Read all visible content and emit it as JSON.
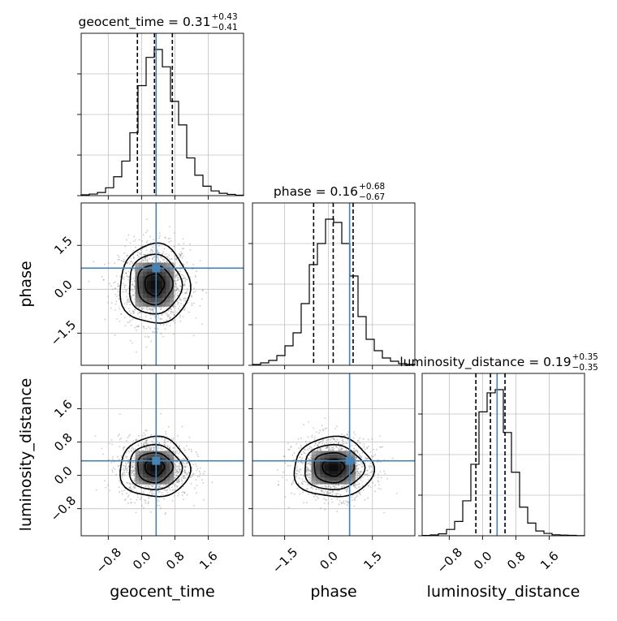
{
  "colors": {
    "truth": "#4682b4",
    "hist": "#000000",
    "grid": "#c0c0c0",
    "scatter": "#8a8a8a"
  },
  "chart_data": {
    "type": "corner",
    "parameters": [
      {
        "name": "geocent_time",
        "label": "geocent_time",
        "truth": 0.35,
        "median": 0.31,
        "plus": 0.43,
        "minus": 0.41,
        "title_main": "geocent_time = 0.31",
        "title_plus": "+0.43",
        "title_minus": "−0.41",
        "range": [
          -1.45,
          2.45
        ],
        "ticks": [
          -0.8,
          0.0,
          0.8,
          1.6
        ],
        "tick_labels": [
          "−0.8",
          "0.0",
          "0.8",
          "1.6"
        ],
        "quantiles": [
          -0.1,
          0.31,
          0.74
        ]
      },
      {
        "name": "phase",
        "label": "phase",
        "truth": 0.72,
        "median": 0.16,
        "plus": 0.68,
        "minus": 0.67,
        "title_main": "phase = 0.16",
        "title_plus": "+0.68",
        "title_minus": "−0.67",
        "range": [
          -2.6,
          2.95
        ],
        "ticks": [
          -1.5,
          0.0,
          1.5
        ],
        "tick_labels": [
          "−1.5",
          "0.0",
          "1.5"
        ],
        "quantiles": [
          -0.51,
          0.16,
          0.84
        ]
      },
      {
        "name": "luminosity_distance",
        "label": "luminosity_distance",
        "truth": 0.35,
        "median": 0.19,
        "plus": 0.35,
        "minus": 0.35,
        "title_main": "luminosity_distance = 0.19",
        "title_plus": "+0.35",
        "title_minus": "−0.35",
        "range": [
          -1.45,
          2.45
        ],
        "ticks": [
          -0.8,
          0.0,
          0.8,
          1.6
        ],
        "tick_labels": [
          "−0.8",
          "0.0",
          "0.8",
          "1.6"
        ],
        "quantiles": [
          -0.16,
          0.19,
          0.54
        ]
      }
    ],
    "histograms": [
      {
        "param": "geocent_time",
        "bin_edges": [
          -1.45,
          -1.255,
          -1.06,
          -0.865,
          -0.67,
          -0.475,
          -0.28,
          -0.085,
          0.11,
          0.305,
          0.5,
          0.695,
          0.89,
          1.085,
          1.28,
          1.475,
          1.67,
          1.865,
          2.06,
          2.255,
          2.45
        ],
        "counts": [
          0.005,
          0.01,
          0.02,
          0.05,
          0.12,
          0.22,
          0.4,
          0.7,
          0.88,
          0.93,
          0.82,
          0.6,
          0.45,
          0.24,
          0.13,
          0.06,
          0.03,
          0.015,
          0.008,
          0.003
        ]
      },
      {
        "param": "phase",
        "bin_edges": [
          -2.6,
          -2.3225,
          -2.045,
          -1.7675,
          -1.49,
          -1.2125,
          -0.935,
          -0.6575,
          -0.38,
          -0.1025,
          0.175,
          0.4525,
          0.73,
          1.0075,
          1.285,
          1.5625,
          1.84,
          2.1175,
          2.395,
          2.6725,
          2.95
        ],
        "counts": [
          0.005,
          0.015,
          0.03,
          0.06,
          0.12,
          0.2,
          0.38,
          0.62,
          0.75,
          0.9,
          0.88,
          0.75,
          0.55,
          0.3,
          0.16,
          0.09,
          0.045,
          0.025,
          0.01,
          0.005
        ]
      },
      {
        "param": "luminosity_distance",
        "bin_edges": [
          -1.45,
          -1.255,
          -1.06,
          -0.865,
          -0.67,
          -0.475,
          -0.28,
          -0.085,
          0.11,
          0.305,
          0.5,
          0.695,
          0.89,
          1.085,
          1.28,
          1.475,
          1.67,
          1.865,
          2.06,
          2.255,
          2.45
        ],
        "counts": [
          0.002,
          0.005,
          0.012,
          0.04,
          0.09,
          0.22,
          0.45,
          0.78,
          0.9,
          0.92,
          0.65,
          0.4,
          0.18,
          0.08,
          0.03,
          0.015,
          0.006,
          0.004,
          0.003,
          0.001
        ]
      }
    ],
    "grid": true,
    "contour_levels": 3
  }
}
